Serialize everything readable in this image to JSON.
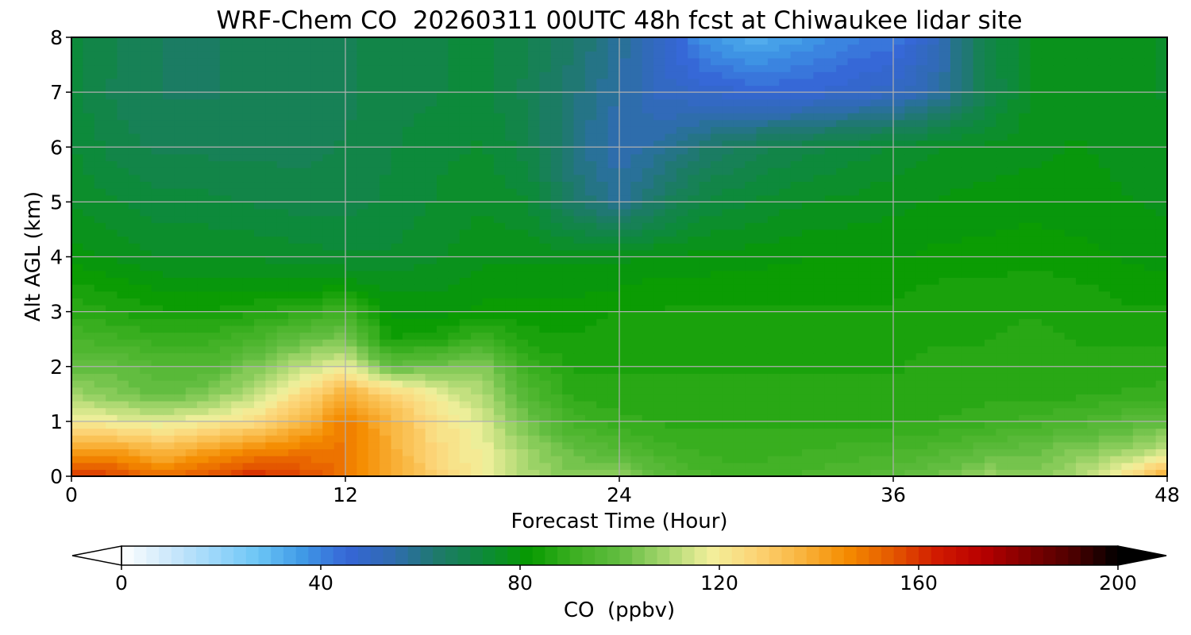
{
  "chart_data": {
    "type": "heatmap",
    "title": "WRF-Chem CO  20260311 00UTC 48h fcst at Chiwaukee lidar site",
    "xlabel": "Forecast Time (Hour)",
    "ylabel": "Alt AGL (km)",
    "xlim": [
      0,
      48
    ],
    "ylim": [
      0,
      8
    ],
    "xticks": [
      0,
      12,
      24,
      36,
      48
    ],
    "yticks": [
      0,
      1,
      2,
      3,
      4,
      5,
      6,
      7,
      8
    ],
    "grid": true,
    "colorbar": {
      "label": "CO  (ppbv)",
      "range": [
        0,
        200
      ],
      "ticks": [
        0,
        40,
        80,
        120,
        160,
        200
      ],
      "extend": "both",
      "colors": [
        "#ffffff",
        "#cfe9fb",
        "#9fd8fa",
        "#6cc6f6",
        "#3f99e6",
        "#3665d6",
        "#2f6cb0",
        "#1e7a6a",
        "#0d8a3a",
        "#079a00",
        "#3db022",
        "#62bd40",
        "#a6d66e",
        "#f2f09c",
        "#fcd476",
        "#f9b53f",
        "#f58c00",
        "#e55a00",
        "#d11a00",
        "#b80000",
        "#800000",
        "#4d0000",
        "#000000"
      ]
    },
    "times": [
      0,
      2,
      4,
      6,
      8,
      10,
      12,
      14,
      16,
      18,
      20,
      22,
      24,
      26,
      28,
      30,
      32,
      34,
      36,
      38,
      40,
      42,
      44,
      46,
      48
    ],
    "altitudes": [
      0,
      0.5,
      1,
      1.5,
      2,
      2.5,
      3,
      3.5,
      4,
      5,
      6,
      7,
      8
    ],
    "values": [
      [
        160,
        158,
        150,
        156,
        162,
        158,
        150,
        140,
        128,
        118,
        110,
        104,
        108,
        98,
        94,
        92,
        94,
        96,
        98,
        102,
        108,
        104,
        110,
        122,
        140
      ],
      [
        140,
        140,
        134,
        140,
        145,
        148,
        150,
        138,
        125,
        118,
        108,
        100,
        96,
        92,
        90,
        90,
        91,
        92,
        93,
        95,
        98,
        100,
        104,
        106,
        112
      ],
      [
        120,
        118,
        116,
        120,
        124,
        135,
        148,
        136,
        124,
        115,
        102,
        92,
        90,
        88,
        88,
        88,
        88,
        88,
        88,
        89,
        90,
        92,
        94,
        97,
        100
      ],
      [
        108,
        104,
        100,
        104,
        112,
        124,
        138,
        128,
        118,
        110,
        96,
        88,
        87,
        87,
        87,
        87,
        87,
        87,
        87,
        87,
        88,
        88,
        88,
        89,
        90
      ],
      [
        100,
        100,
        96,
        96,
        104,
        112,
        118,
        100,
        102,
        106,
        90,
        86,
        86,
        86,
        86,
        86,
        86,
        86,
        86,
        87,
        87,
        88,
        87,
        87,
        87
      ],
      [
        94,
        92,
        90,
        90,
        94,
        100,
        104,
        84,
        86,
        92,
        85,
        84,
        85,
        85,
        85,
        85,
        85,
        85,
        85,
        86,
        86,
        87,
        86,
        86,
        86
      ],
      [
        88,
        86,
        84,
        84,
        86,
        88,
        92,
        80,
        80,
        82,
        82,
        82,
        84,
        84,
        84,
        84,
        84,
        84,
        84,
        85,
        85,
        86,
        85,
        84,
        84
      ],
      [
        84,
        82,
        80,
        80,
        80,
        80,
        80,
        78,
        78,
        80,
        80,
        80,
        81,
        82,
        82,
        83,
        83,
        83,
        83,
        84,
        84,
        85,
        84,
        83,
        82
      ],
      [
        80,
        78,
        76,
        76,
        76,
        75,
        74,
        74,
        76,
        78,
        78,
        78,
        78,
        79,
        80,
        80,
        81,
        81,
        81,
        82,
        82,
        83,
        82,
        81,
        80
      ],
      [
        76,
        74,
        72,
        72,
        71,
        70,
        70,
        72,
        74,
        76,
        74,
        64,
        58,
        66,
        72,
        74,
        76,
        77,
        78,
        79,
        80,
        80,
        80,
        79,
        78
      ],
      [
        74,
        70,
        68,
        68,
        68,
        68,
        69,
        71,
        73,
        74,
        70,
        60,
        54,
        58,
        64,
        68,
        70,
        72,
        74,
        76,
        77,
        78,
        79,
        78,
        77
      ],
      [
        72,
        68,
        66,
        66,
        67,
        67,
        68,
        70,
        71,
        72,
        68,
        62,
        56,
        50,
        48,
        46,
        46,
        48,
        50,
        56,
        68,
        76,
        78,
        77,
        76
      ],
      [
        72,
        69,
        66,
        66,
        67,
        67,
        68,
        70,
        71,
        72,
        69,
        64,
        58,
        48,
        36,
        32,
        36,
        40,
        42,
        52,
        70,
        76,
        78,
        77,
        76
      ]
    ]
  }
}
